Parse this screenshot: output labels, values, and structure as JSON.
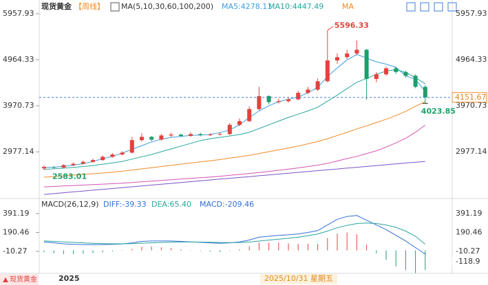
{
  "chart_data": [
    {
      "type": "candlestick",
      "title": "现货黄金",
      "period": "【周线】",
      "indicator": "MA(5,10,30,60,100,200)",
      "legend_texts": [
        "MA5:4278.11",
        "MA10:4447.49",
        "MA"
      ],
      "open": [
        2620,
        2650,
        2640,
        2690,
        2720,
        2760,
        2800,
        2870,
        2920,
        2960,
        3230,
        3300,
        3240,
        3330,
        3350,
        3320,
        3360,
        3340,
        3350,
        3360,
        3560,
        3640,
        3900,
        4180,
        4050,
        4070,
        4110,
        4250,
        4320,
        4500,
        4950,
        5020,
        5100,
        5180,
        4550,
        4650,
        4780,
        4700,
        4620,
        4380
      ],
      "high": [
        2680,
        2670,
        2710,
        2745,
        2790,
        2830,
        2900,
        2950,
        2990,
        3300,
        3380,
        3320,
        3360,
        3390,
        3370,
        3400,
        3390,
        3380,
        3400,
        3600,
        3700,
        3960,
        4380,
        4200,
        4120,
        4160,
        4290,
        4380,
        4560,
        5596.33,
        5100,
        5180,
        5380,
        5200,
        4700,
        4820,
        4820,
        4730,
        4650,
        4420
      ],
      "low": [
        2583.01,
        2610,
        2620,
        2670,
        2700,
        2740,
        2780,
        2850,
        2900,
        2940,
        3200,
        3210,
        3220,
        3300,
        3300,
        3300,
        3310,
        3320,
        3330,
        3340,
        3530,
        3620,
        3870,
        4000,
        4020,
        4040,
        4090,
        4220,
        4290,
        4480,
        4880,
        4980,
        5060,
        4100,
        4480,
        4620,
        4660,
        4580,
        4350,
        4023.85
      ],
      "close": [
        2650,
        2640,
        2690,
        2720,
        2760,
        2800,
        2870,
        2920,
        2960,
        3230,
        3300,
        3240,
        3330,
        3350,
        3320,
        3360,
        3340,
        3350,
        3360,
        3560,
        3640,
        3900,
        4180,
        4050,
        4070,
        4110,
        4250,
        4320,
        4500,
        4950,
        5020,
        5100,
        5180,
        4550,
        4650,
        4780,
        4700,
        4620,
        4380,
        4151.67
      ],
      "up_color": "#e5413c",
      "down_color": "#1e9e6a",
      "series": [
        {
          "name": "MA5",
          "color": "#3d9ee0",
          "values": [
            2640,
            2645,
            2665,
            2690,
            2720,
            2770,
            2830,
            2880,
            2950,
            3030,
            3110,
            3190,
            3250,
            3290,
            3310,
            3330,
            3340,
            3350,
            3390,
            3450,
            3560,
            3720,
            3860,
            3970,
            4060,
            4110,
            4160,
            4250,
            4370,
            4600,
            4790,
            4960,
            5080,
            5000,
            4920,
            4870,
            4800,
            4620,
            4540,
            4278.11
          ]
        },
        {
          "name": "MA10",
          "color": "#27a59c",
          "values": [
            2600,
            2610,
            2625,
            2640,
            2660,
            2680,
            2710,
            2740,
            2770,
            2820,
            2870,
            2920,
            2980,
            3040,
            3100,
            3160,
            3220,
            3260,
            3290,
            3320,
            3350,
            3400,
            3480,
            3560,
            3640,
            3720,
            3790,
            3860,
            3940,
            4070,
            4200,
            4340,
            4480,
            4560,
            4650,
            4720,
            4750,
            4690,
            4580,
            4447.49
          ]
        },
        {
          "name": "MA30",
          "color": "#f08a24",
          "values": [
            2430,
            2445,
            2460,
            2475,
            2490,
            2505,
            2520,
            2540,
            2560,
            2585,
            2610,
            2635,
            2660,
            2685,
            2710,
            2735,
            2760,
            2785,
            2810,
            2840,
            2870,
            2900,
            2940,
            2980,
            3020,
            3060,
            3100,
            3150,
            3200,
            3260,
            3330,
            3400,
            3470,
            3540,
            3610,
            3680,
            3760,
            3850,
            3960,
            4060
          ]
        },
        {
          "name": "MA60",
          "color": "#d452b2",
          "values": [
            2220,
            2230,
            2240,
            2250,
            2260,
            2270,
            2280,
            2290,
            2300,
            2315,
            2330,
            2345,
            2360,
            2375,
            2390,
            2405,
            2420,
            2435,
            2450,
            2470,
            2490,
            2510,
            2530,
            2555,
            2580,
            2605,
            2630,
            2660,
            2690,
            2730,
            2780,
            2830,
            2880,
            2940,
            3000,
            3080,
            3170,
            3270,
            3400,
            3555
          ]
        },
        {
          "name": "MA100",
          "color": "#7a52c8",
          "values": [
            2058,
            2076,
            2095,
            2113,
            2131,
            2150,
            2168,
            2186,
            2204,
            2223,
            2241,
            2259,
            2278,
            2296,
            2314,
            2333,
            2351,
            2369,
            2388,
            2406,
            2424,
            2442,
            2461,
            2479,
            2497,
            2516,
            2534,
            2552,
            2571,
            2589,
            2607,
            2626,
            2644,
            2662,
            2681,
            2699,
            2717,
            2735,
            2754,
            2770
          ]
        }
      ],
      "ylim": [
        2030,
        6180
      ],
      "yticks": [
        2977.14,
        3970.73,
        4964.33,
        5957.93
      ],
      "x_labels": [
        "2025"
      ],
      "crosshair_date": "2025/10/31 星期五",
      "symbol": "现货黄金"
    },
    {
      "type": "macd",
      "title": "MACD(26,12,9)",
      "legend_texts": [
        "DIFF:-39.33",
        "DEA:65.40",
        "MACD:-209.46"
      ],
      "series": [
        {
          "name": "DIFF",
          "color": "#2f6fd6",
          "values": [
            90,
            80,
            70,
            65,
            62,
            60,
            62,
            65,
            68,
            80,
            95,
            100,
            100,
            100,
            95,
            90,
            85,
            80,
            75,
            80,
            90,
            110,
            140,
            150,
            160,
            165,
            175,
            190,
            210,
            270,
            330,
            360,
            370,
            320,
            270,
            220,
            160,
            100,
            30,
            -39.33
          ]
        },
        {
          "name": "DEA",
          "color": "#27a59c",
          "values": [
            100,
            95,
            90,
            85,
            80,
            75,
            72,
            70,
            70,
            72,
            76,
            80,
            84,
            87,
            89,
            89,
            88,
            86,
            84,
            83,
            84,
            89,
            99,
            109,
            119,
            128,
            140,
            155,
            175,
            205,
            240,
            265,
            285,
            290,
            285,
            270,
            245,
            205,
            150,
            65.4
          ]
        }
      ],
      "bars": [
        -20,
        -30,
        -40,
        -40,
        -36,
        -30,
        -20,
        -10,
        -4,
        16,
        38,
        40,
        32,
        26,
        12,
        2,
        -6,
        -12,
        -18,
        -6,
        12,
        42,
        82,
        82,
        82,
        74,
        70,
        70,
        70,
        130,
        180,
        190,
        170,
        60,
        -30,
        -100,
        -170,
        -210,
        -240,
        -209.46
      ],
      "up_color": "#e5413c",
      "down_color": "#1e9e6a",
      "ylim": [
        -222,
        471
      ],
      "yticks": [
        -10.27,
        190.46,
        391.19
      ],
      "side_label": -118.9
    }
  ]
}
